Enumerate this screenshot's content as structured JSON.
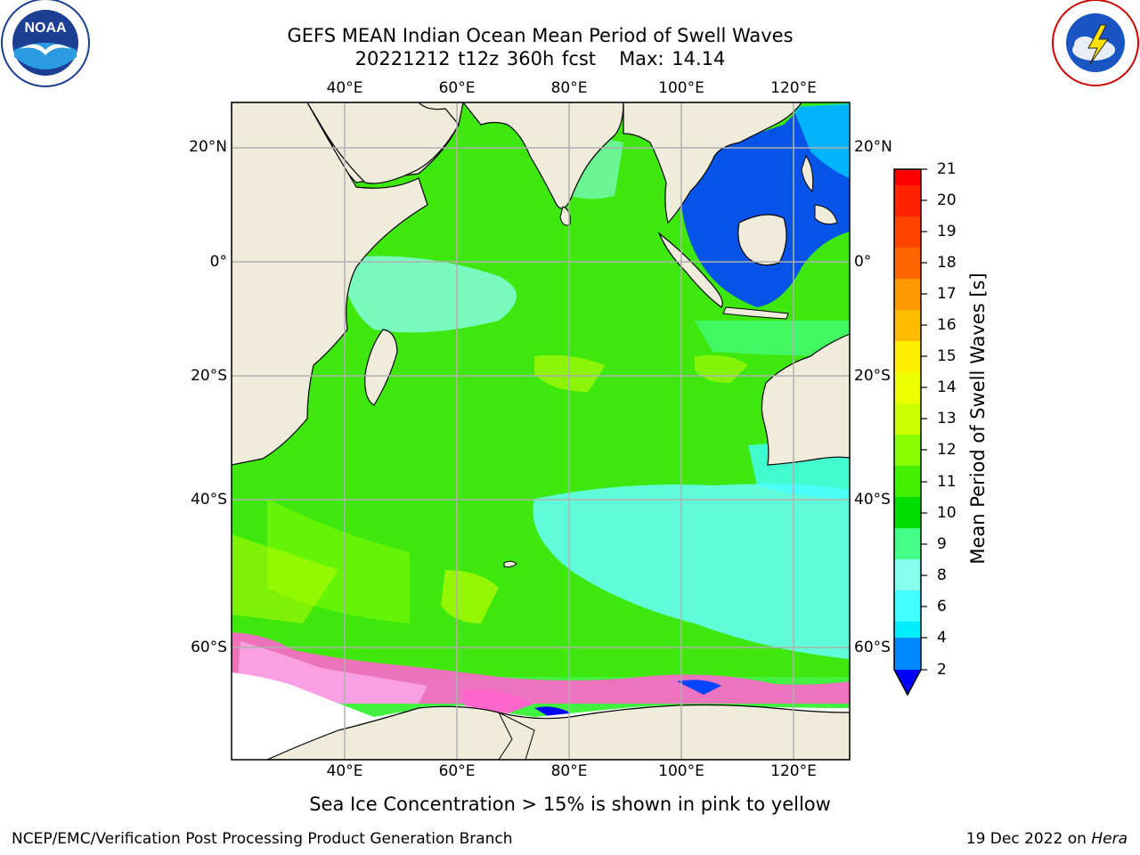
{
  "header": {
    "title_line1": "GEFS MEAN Indian Ocean Mean Period of Swell Waves",
    "title_line2": "20221212 t12z 360h fcst   Max: 14.14"
  },
  "logos": {
    "left": "NOAA",
    "left_ring_text": "NATIONAL OCEANIC AND ATMOSPHERIC ADMINISTRATION · U.S. DEPARTMENT OF COMMERCE",
    "right_ring_text": "NATIONAL WEATHER SERVICE"
  },
  "map": {
    "lon_ticks": [
      "40°E",
      "60°E",
      "80°E",
      "100°E",
      "120°E"
    ],
    "lat_ticks": [
      "20°N",
      "0°",
      "20°S",
      "40°S",
      "60°S"
    ],
    "colors": {
      "land": "#efecdc",
      "sea_ice": "#ffffff",
      "grid": "#b0b0b0",
      "ice_pink": "#ff66cc"
    }
  },
  "colorbar": {
    "label": "Mean Period of Swell Waves [s]",
    "ticks": [
      "21",
      "20",
      "19",
      "18",
      "17",
      "16",
      "15",
      "14",
      "13",
      "12",
      "11",
      "10",
      "9",
      "8",
      "7",
      "6",
      "4",
      "2"
    ],
    "colors": [
      "#ff0000",
      "#ff3300",
      "#ff5500",
      "#ff8000",
      "#ffaa00",
      "#ffd500",
      "#ffff00",
      "#e6f500",
      "#ccff00",
      "#88ff00",
      "#44ee00",
      "#00dd00",
      "#44ff88",
      "#88ffee",
      "#44ffff",
      "#00eeff",
      "#0099ff",
      "#0000ff"
    ]
  },
  "caption": "Sea Ice Concentration > 15% is shown in pink to yellow",
  "footer": {
    "left": "NCEP/EMC/Verification Post Processing Product Generation Branch",
    "right_prefix": "19 Dec 2022 on ",
    "right_host": "Hera"
  }
}
